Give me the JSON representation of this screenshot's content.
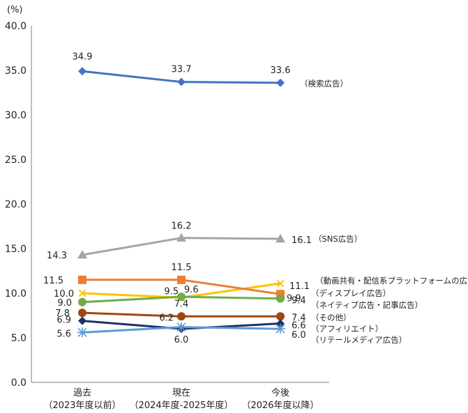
{
  "chart_data": {
    "type": "line",
    "unit_label": "(%)",
    "ylim": [
      0,
      40
    ],
    "yticks": [
      "0.0",
      "5.0",
      "10.0",
      "15.0",
      "20.0",
      "25.0",
      "30.0",
      "35.0",
      "40.0"
    ],
    "categories": [
      [
        "過去",
        "（2023年度以前）"
      ],
      [
        "現在",
        "（2024年度-2025年度）"
      ],
      [
        "今後",
        "（2026年度以降）"
      ]
    ],
    "grid": false,
    "series": [
      {
        "name": "（検索広告）",
        "color": "#4472C4",
        "marker": "diamond",
        "values": [
          34.9,
          33.7,
          33.6
        ]
      },
      {
        "name": "（SNS広告）",
        "color": "#A5A5A5",
        "marker": "triangle",
        "values": [
          14.3,
          16.2,
          16.1
        ]
      },
      {
        "name": "（動画共有・配信系プラットフォームの広告）",
        "color": "#FFC000",
        "marker": "x",
        "values": [
          10.0,
          9.5,
          11.1
        ]
      },
      {
        "name": "（ディスプレイ広告）",
        "color": "#ED7D31",
        "marker": "square",
        "values": [
          11.5,
          11.5,
          9.9
        ]
      },
      {
        "name": "（ネイティブ広告・記事広告）",
        "color": "#70AD47",
        "marker": "circle",
        "values": [
          9.0,
          9.6,
          9.4
        ]
      },
      {
        "name": "（その他）",
        "color": "#9E480E",
        "marker": "circle",
        "values": [
          7.8,
          7.4,
          7.4
        ]
      },
      {
        "name": "（アフィリエイト）",
        "color": "#1F2F6B",
        "marker": "diamond",
        "values": [
          6.9,
          6.0,
          6.6
        ]
      },
      {
        "name": "（リテールメディア広告）",
        "color": "#5B9BD5",
        "marker": "star",
        "values": [
          5.6,
          6.2,
          6.0
        ]
      }
    ]
  }
}
